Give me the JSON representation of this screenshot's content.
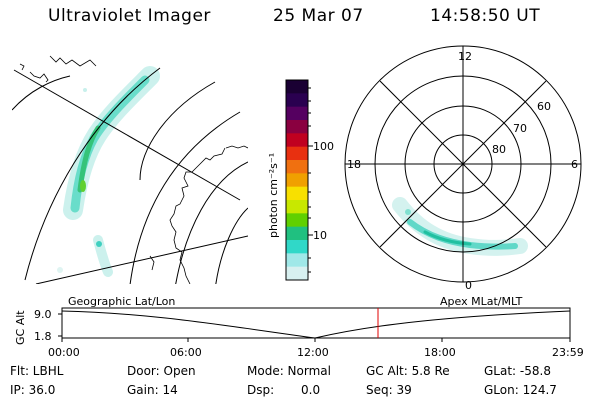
{
  "header": {
    "title": "Ultraviolet Imager",
    "date": "25 Mar 07",
    "time": "14:58:50 UT"
  },
  "colorbar": {
    "label": "photon cm⁻²s⁻¹",
    "ticks": [
      "100",
      "10"
    ],
    "colors": [
      "#1a0033",
      "#2a0050",
      "#550060",
      "#8a0040",
      "#c00020",
      "#e83010",
      "#f07010",
      "#f0a000",
      "#f8e000",
      "#c8e800",
      "#60d000",
      "#20c080",
      "#30d8c8",
      "#a0e8e8",
      "#d8f0f0"
    ]
  },
  "geo_map": {
    "name": "Geographic Lat/Lon"
  },
  "polar_map": {
    "name": "Apex MLat/MLT",
    "mlt_labels": [
      "12",
      "18",
      "6",
      "0"
    ],
    "lat_labels": [
      "60",
      "70",
      "80"
    ]
  },
  "altitude_plot": {
    "y_axis_label": "GC Alt",
    "y_ticks": [
      "9.0",
      "1.8"
    ],
    "x_ticks": [
      "00:00",
      "06:00",
      "12:00",
      "18:00",
      "23:59"
    ],
    "current_time_marker": "14:58:50",
    "marker_color": "#e00000"
  },
  "info": {
    "flt": "Flt: LBHL",
    "door": "Door: Open",
    "mode": "Mode: Normal",
    "gc_alt": "GC Alt: 5.8 Re",
    "glat": "GLat: -58.8",
    "ip": "IP: 36.0",
    "gain": "Gain: 14",
    "dsp_label": "Dsp:",
    "dsp_value": "0.0",
    "seq": "Seq: 39",
    "glon": "GLon: 124.7"
  }
}
